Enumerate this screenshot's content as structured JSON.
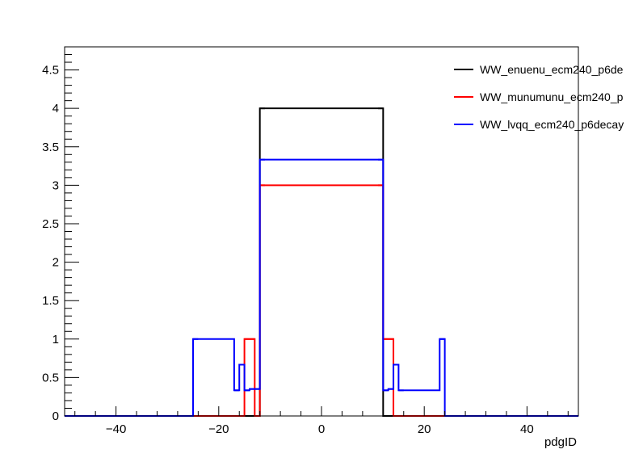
{
  "chart_data": {
    "type": "step-histogram",
    "xlabel": "pdgID",
    "ylabel": "",
    "xlim": [
      -50,
      50
    ],
    "ylim": [
      0,
      4.8
    ],
    "x_ticks": [
      -40,
      -20,
      0,
      20,
      40
    ],
    "y_ticks": [
      0,
      0.5,
      1,
      1.5,
      2,
      2.5,
      3,
      3.5,
      4,
      4.5
    ],
    "x_tick_labels": [
      "−40",
      "−20",
      "0",
      "20",
      "40"
    ],
    "y_tick_labels": [
      "0",
      "0.5",
      "1",
      "1.5",
      "2",
      "2.5",
      "3",
      "3.5",
      "4",
      "4.5"
    ],
    "grid": false,
    "legend_position": "top-right",
    "series": [
      {
        "name": "WW_enuenu_ecm240_p6de",
        "color": "#000000",
        "bins": [
          {
            "x0": -16,
            "x1": -15,
            "y": 0
          },
          {
            "x0": -15,
            "x1": -14,
            "y": 0
          },
          {
            "x0": -14,
            "x1": -13,
            "y": 0
          },
          {
            "x0": -13,
            "x1": -12,
            "y": 0
          },
          {
            "x0": -12,
            "x1": -11,
            "y": 4
          },
          {
            "x0": 11,
            "x1": 12,
            "y": 4
          },
          {
            "x0": 12,
            "x1": 13,
            "y": 0
          },
          {
            "x0": 13,
            "x1": 14,
            "y": 0
          },
          {
            "x0": 14,
            "x1": 15,
            "y": 0
          }
        ]
      },
      {
        "name": "WW_munumunu_ecm240_p",
        "color": "#ff0000",
        "bins": [
          {
            "x0": -15,
            "x1": -14,
            "y": 1
          },
          {
            "x0": -14,
            "x1": -13,
            "y": 1
          },
          {
            "x0": -13,
            "x1": -12,
            "y": 0
          },
          {
            "x0": -12,
            "x1": -11,
            "y": 3
          },
          {
            "x0": 11,
            "x1": 12,
            "y": 3
          },
          {
            "x0": 12,
            "x1": 13,
            "y": 1
          },
          {
            "x0": 13,
            "x1": 14,
            "y": 1
          },
          {
            "x0": 14,
            "x1": 15,
            "y": 0
          }
        ]
      },
      {
        "name": "WW_lvqq_ecm240_p6decay",
        "color": "#0000ff",
        "bins": [
          {
            "x0": -25,
            "x1": -24,
            "y": 1
          },
          {
            "x0": -17,
            "x1": -16,
            "y": 0.333
          },
          {
            "x0": -16,
            "x1": -15,
            "y": 0.667
          },
          {
            "x0": -15,
            "x1": -14,
            "y": 0.333
          },
          {
            "x0": -14,
            "x1": -13,
            "y": 0.35
          },
          {
            "x0": -13,
            "x1": -12,
            "y": 0.35
          },
          {
            "x0": -12,
            "x1": -11,
            "y": 3.333
          },
          {
            "x0": 11,
            "x1": 12,
            "y": 3.333
          },
          {
            "x0": 12,
            "x1": 13,
            "y": 0.333
          },
          {
            "x0": 13,
            "x1": 14,
            "y": 0.35
          },
          {
            "x0": 14,
            "x1": 15,
            "y": 0.667
          },
          {
            "x0": 15,
            "x1": 16,
            "y": 0.333
          },
          {
            "x0": 23,
            "x1": 24,
            "y": 1
          }
        ]
      }
    ]
  }
}
